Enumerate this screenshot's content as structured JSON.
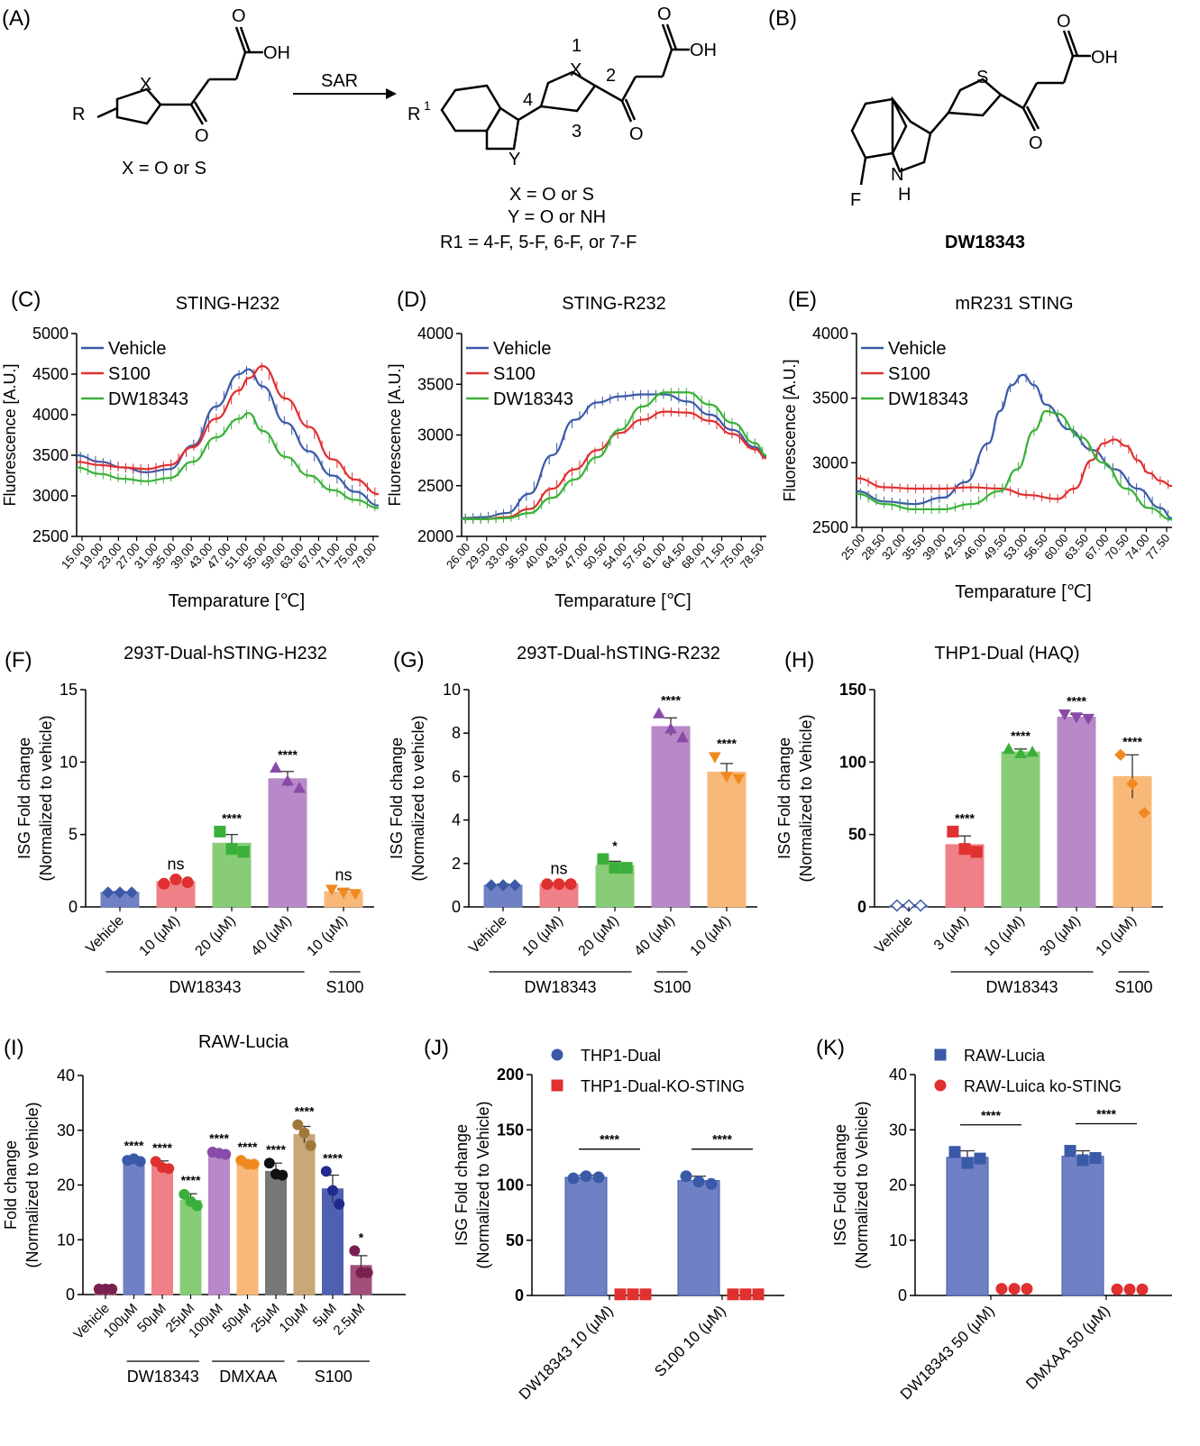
{
  "panels": {
    "A": {
      "label": "(A)",
      "left_structure_note": "X = O or S",
      "arrow_label": "SAR",
      "right_numbers": [
        "1",
        "2",
        "3",
        "4"
      ],
      "right_notes": [
        "X = O or S",
        "Y = O or NH",
        "R1 = 4-F, 5-F, 6-F, or 7-F"
      ]
    },
    "B": {
      "label": "(B)",
      "compound": "DW18343"
    }
  },
  "colors": {
    "blue": "#3a5aa8",
    "red": "#e03030",
    "green": "#3ab03a",
    "bar_blue": "#7080c4",
    "bar_red": "#f08088",
    "bar_green": "#88cc78",
    "bar_purple": "#b888c8",
    "bar_orange": "#f8b878",
    "bar_gray": "#777777",
    "bar_tan": "#c8a878",
    "bar_navy": "#5060b0",
    "bar_maroon": "#a05078"
  },
  "chart_data": [
    {
      "panel": "(C)",
      "type": "line",
      "title": "STING-H232",
      "xlabel": "Temparature [℃]",
      "ylabel": "Fluorescence [A.U.]",
      "ylim": [
        2500,
        5000
      ],
      "yticks": [
        2500,
        3000,
        3500,
        4000,
        4500,
        5000
      ],
      "xlim": [
        15,
        80
      ],
      "xticks": [
        "15.00",
        "19.00",
        "23.00",
        "27.00",
        "31.00",
        "35.00",
        "39.00",
        "43.00",
        "47.00",
        "51.00",
        "55.00",
        "59.00",
        "63.00",
        "67.00",
        "71.00",
        "75.00",
        "79.00"
      ],
      "legend": "top-left",
      "series": [
        {
          "name": "Vehicle",
          "color": "blue",
          "x": [
            15,
            20,
            25,
            30,
            35,
            40,
            45,
            50,
            52,
            55,
            60,
            65,
            70,
            75,
            80
          ],
          "y": [
            3500,
            3420,
            3350,
            3290,
            3330,
            3620,
            4100,
            4500,
            4560,
            4350,
            3900,
            3550,
            3250,
            3050,
            2880
          ]
        },
        {
          "name": "S100",
          "color": "red",
          "x": [
            15,
            20,
            25,
            30,
            35,
            40,
            45,
            50,
            52,
            55,
            60,
            65,
            70,
            75,
            80
          ],
          "y": [
            3420,
            3380,
            3350,
            3330,
            3380,
            3600,
            3950,
            4300,
            4450,
            4600,
            4200,
            3850,
            3450,
            3200,
            3020
          ]
        },
        {
          "name": "DW18343",
          "color": "green",
          "x": [
            15,
            20,
            25,
            30,
            35,
            40,
            45,
            50,
            52,
            55,
            60,
            65,
            70,
            75,
            80
          ],
          "y": [
            3350,
            3270,
            3210,
            3180,
            3220,
            3420,
            3720,
            3950,
            4020,
            3800,
            3480,
            3250,
            3070,
            2950,
            2850
          ]
        }
      ]
    },
    {
      "panel": "(D)",
      "type": "line",
      "title": "STING-R232",
      "xlabel": "Temparature [℃]",
      "ylabel": "Fluorescence [A.U.]",
      "ylim": [
        2000,
        4000
      ],
      "yticks": [
        2000,
        2500,
        3000,
        3500,
        4000
      ],
      "xlim": [
        26,
        80
      ],
      "xticks": [
        "26.00",
        "29.50",
        "33.00",
        "36.50",
        "40.00",
        "43.50",
        "47.00",
        "50.50",
        "54.00",
        "57.50",
        "61.00",
        "64.50",
        "68.00",
        "71.50",
        "75.00",
        "78.50"
      ],
      "legend": "top-left",
      "series": [
        {
          "name": "Vehicle",
          "color": "blue",
          "x": [
            26,
            30,
            34,
            38,
            42,
            46,
            50,
            54,
            58,
            62,
            66,
            70,
            74,
            78,
            80
          ],
          "y": [
            2180,
            2190,
            2230,
            2420,
            2800,
            3150,
            3320,
            3380,
            3400,
            3400,
            3330,
            3200,
            3050,
            2880,
            2780
          ]
        },
        {
          "name": "S100",
          "color": "red",
          "x": [
            26,
            30,
            34,
            38,
            42,
            46,
            50,
            54,
            58,
            62,
            66,
            70,
            74,
            78,
            80
          ],
          "y": [
            2170,
            2170,
            2190,
            2270,
            2470,
            2660,
            2850,
            3020,
            3150,
            3230,
            3220,
            3140,
            3010,
            2860,
            2770
          ]
        },
        {
          "name": "DW18343",
          "color": "green",
          "x": [
            26,
            30,
            34,
            38,
            42,
            46,
            50,
            54,
            58,
            62,
            66,
            70,
            74,
            78,
            80
          ],
          "y": [
            2170,
            2170,
            2180,
            2230,
            2380,
            2560,
            2780,
            3050,
            3280,
            3420,
            3420,
            3300,
            3120,
            2920,
            2800
          ]
        }
      ]
    },
    {
      "panel": "(E)",
      "type": "line",
      "title": "mR231 STING",
      "xlabel": "Temparature [℃]",
      "ylabel": "Fluorescence [A.U.]",
      "ylim": [
        2500,
        4000
      ],
      "yticks": [
        2500,
        3000,
        3500,
        4000
      ],
      "xlim": [
        25,
        80
      ],
      "xticks": [
        "25.00",
        "28.50",
        "32.00",
        "35.50",
        "39.00",
        "42.50",
        "46.00",
        "49.50",
        "53.00",
        "56.50",
        "60.00",
        "63.50",
        "67.00",
        "70.50",
        "74.00",
        "77.50"
      ],
      "legend": "top-left",
      "series": [
        {
          "name": "Vehicle",
          "color": "blue",
          "x": [
            25,
            30,
            35,
            40,
            44,
            48,
            50,
            52,
            54,
            56,
            58,
            62,
            66,
            70,
            74,
            78,
            80
          ],
          "y": [
            2780,
            2700,
            2680,
            2730,
            2850,
            3150,
            3400,
            3600,
            3680,
            3600,
            3450,
            3260,
            3100,
            2950,
            2800,
            2650,
            2570
          ]
        },
        {
          "name": "S100",
          "color": "red",
          "x": [
            25,
            30,
            35,
            40,
            45,
            50,
            55,
            60,
            63,
            66,
            68,
            70,
            72,
            74,
            76,
            78,
            80
          ],
          "y": [
            2880,
            2810,
            2800,
            2800,
            2810,
            2800,
            2750,
            2720,
            2800,
            3020,
            3150,
            3180,
            3130,
            3020,
            2920,
            2860,
            2820
          ]
        },
        {
          "name": "DW18343",
          "color": "green",
          "x": [
            25,
            30,
            35,
            40,
            45,
            50,
            53,
            56,
            58,
            60,
            64,
            68,
            72,
            76,
            80
          ],
          "y": [
            2760,
            2680,
            2640,
            2640,
            2680,
            2780,
            2950,
            3250,
            3400,
            3380,
            3200,
            3000,
            2800,
            2650,
            2560
          ]
        }
      ]
    },
    {
      "panel": "(F)",
      "type": "bar",
      "title": "293T-Dual-hSTING-H232",
      "ylabel": "ISG Fold change (Normalized to vehicle)",
      "ylim": [
        0,
        15
      ],
      "yticks": [
        0,
        5,
        10,
        15
      ],
      "categories": [
        "Vehicle",
        "10 (μM)",
        "20 (μM)",
        "40 (μM)",
        "10 (μM)"
      ],
      "values": [
        1.0,
        1.75,
        4.4,
        8.85,
        1.05
      ],
      "errors": [
        0.05,
        0.2,
        0.6,
        0.5,
        0.15
      ],
      "points": [
        [
          1,
          1,
          1
        ],
        [
          1.6,
          1.9,
          1.7
        ],
        [
          5.2,
          4.0,
          3.8
        ],
        [
          9.6,
          8.7,
          8.2
        ],
        [
          1.2,
          1.0,
          0.9
        ]
      ],
      "bar_colors": [
        "bar_blue",
        "bar_red",
        "bar_green",
        "bar_purple",
        "bar_orange"
      ],
      "markers": [
        "diamond",
        "circle",
        "square",
        "triangle",
        "triangle-down"
      ],
      "stars": [
        "",
        "ns",
        "****",
        "****",
        "ns"
      ],
      "groups": [
        {
          "label": "DW18343",
          "from": 0,
          "to": 3
        },
        {
          "label": "S100",
          "from": 4,
          "to": 4
        }
      ]
    },
    {
      "panel": "(G)",
      "type": "bar",
      "title": "293T-Dual-hSTING-R232",
      "ylabel": "ISG Fold change (Normalized to vehicle)",
      "ylim": [
        0,
        10
      ],
      "yticks": [
        0,
        2,
        4,
        6,
        8,
        10
      ],
      "categories": [
        "Vehicle",
        "10 (μM)",
        "20 (μM)",
        "40 (μM)",
        "10 (μM)"
      ],
      "values": [
        1.0,
        1.05,
        1.9,
        8.3,
        6.2
      ],
      "errors": [
        0.05,
        0.05,
        0.2,
        0.4,
        0.4
      ],
      "points": [
        [
          1,
          1,
          1
        ],
        [
          1.05,
          1.05,
          1.05
        ],
        [
          2.2,
          1.8,
          1.8
        ],
        [
          8.9,
          8.2,
          7.8
        ],
        [
          6.9,
          6.0,
          5.9
        ]
      ],
      "bar_colors": [
        "bar_blue",
        "bar_red",
        "bar_green",
        "bar_purple",
        "bar_orange"
      ],
      "markers": [
        "diamond",
        "circle",
        "square",
        "triangle",
        "triangle-down"
      ],
      "stars": [
        "",
        "ns",
        "*",
        "****",
        "****"
      ],
      "groups": [
        {
          "label": "DW18343",
          "from": 0,
          "to": 2
        },
        {
          "label": "S100",
          "from": 3,
          "to": 3
        }
      ]
    },
    {
      "panel": "(H)",
      "type": "bar",
      "title": "THP1-Dual  (HAQ)",
      "ylabel": "ISG Fold change (Normalized to Vehicle)",
      "ylim": [
        0,
        150
      ],
      "yticks": [
        0,
        50,
        100,
        150
      ],
      "categories": [
        "Vehicle",
        "3 (μM)",
        "10 (μM)",
        "30 (μM)",
        "10 (μM)"
      ],
      "values": [
        1.0,
        43,
        107,
        131,
        90
      ],
      "errors": [
        0.5,
        6,
        2,
        2,
        15
      ],
      "points": [
        [
          1,
          1,
          1
        ],
        [
          52,
          40,
          38
        ],
        [
          109,
          106,
          107
        ],
        [
          133,
          131,
          130
        ],
        [
          105,
          85,
          65
        ]
      ],
      "bar_colors": [
        "bar_blue",
        "bar_red",
        "bar_green",
        "bar_purple",
        "bar_orange"
      ],
      "markers": [
        "diamond-open",
        "square",
        "triangle",
        "triangle-down",
        "diamond"
      ],
      "stars": [
        "",
        "****",
        "****",
        "****",
        "****"
      ],
      "groups": [
        {
          "label": "DW18343",
          "from": 1,
          "to": 3
        },
        {
          "label": "S100",
          "from": 4,
          "to": 4
        }
      ]
    },
    {
      "panel": "(I)",
      "type": "bar",
      "title": "RAW-Lucia",
      "ylabel": "Fold change (Normalized to vehicle)",
      "ylim": [
        0,
        40
      ],
      "yticks": [
        0,
        10,
        20,
        30,
        40
      ],
      "categories": [
        "Vehicle",
        "100μM",
        "50μM",
        "25μM",
        "100μM",
        "50μM",
        "25μM",
        "10μM",
        "5μM",
        "2.5μM"
      ],
      "values": [
        1.0,
        24.5,
        23.5,
        17.2,
        25.8,
        24.0,
        22.5,
        29.2,
        19.3,
        5.3
      ],
      "errors": [
        0.1,
        0.3,
        0.9,
        1.2,
        0.3,
        0.5,
        1.5,
        1.5,
        2.5,
        1.8
      ],
      "points": [
        [
          1,
          1,
          1
        ],
        [
          24.5,
          24.8,
          24.3
        ],
        [
          24.3,
          23.2,
          23
        ],
        [
          18.3,
          17,
          16.2
        ],
        [
          26,
          25.8,
          25.6
        ],
        [
          24.5,
          23.8,
          23.8
        ],
        [
          24,
          22,
          21.8
        ],
        [
          31,
          29.5,
          27.2
        ],
        [
          22.5,
          19,
          16.5
        ],
        [
          8,
          4,
          4
        ]
      ],
      "bar_colors": [
        "bar_maroon",
        "bar_blue",
        "bar_red",
        "bar_green",
        "bar_purple",
        "bar_orange",
        "bar_gray",
        "bar_tan",
        "bar_navy",
        "bar_maroon"
      ],
      "markers": [
        "circle",
        "circle",
        "circle",
        "circle",
        "circle",
        "circle",
        "circle",
        "circle",
        "circle",
        "circle"
      ],
      "stars": [
        "",
        "****",
        "****",
        "****",
        "****",
        "****",
        "****",
        "****",
        "****",
        "*"
      ],
      "groups": [
        {
          "label": "DW18343",
          "from": 1,
          "to": 3
        },
        {
          "label": "DMXAA",
          "from": 4,
          "to": 6
        },
        {
          "label": "S100",
          "from": 7,
          "to": 9
        }
      ]
    },
    {
      "panel": "(J)",
      "type": "grouped-bar",
      "ylabel": "ISG Fold change (Normalized to Vehicle)",
      "ylim": [
        0,
        200
      ],
      "yticks": [
        0,
        50,
        100,
        150,
        200
      ],
      "categories": [
        "DW18343 10 (μM)",
        "S100 10 (μM)"
      ],
      "series": [
        {
          "name": "THP1-Dual",
          "color": "bar_blue",
          "marker": "circle",
          "marker_color": "blue",
          "values": [
            107,
            104
          ],
          "errors": [
            2,
            4
          ],
          "points": [
            [
              106,
              108,
              107
            ],
            [
              108,
              103,
              101
            ]
          ]
        },
        {
          "name": "THP1-Dual-KO-STING",
          "color": "red",
          "marker": "square",
          "marker_color": "red",
          "values": [
            1,
            1
          ],
          "errors": [
            0,
            0
          ],
          "points": [
            [
              1,
              1,
              1
            ],
            [
              1,
              1,
              1
            ]
          ]
        }
      ],
      "stars": [
        "****",
        "****"
      ],
      "legend": "top"
    },
    {
      "panel": "(K)",
      "type": "grouped-bar",
      "ylabel": "ISG Fold change (Normalized to Vehicle)",
      "ylim": [
        0,
        40
      ],
      "yticks": [
        0,
        10,
        20,
        30,
        40
      ],
      "categories": [
        "DW18343 50 (μM)",
        "DMXAA 50 (μM)"
      ],
      "series": [
        {
          "name": "RAW-Lucia",
          "color": "bar_blue",
          "marker": "square",
          "marker_color": "blue",
          "values": [
            25,
            25.2
          ],
          "errors": [
            1.2,
            1.0
          ],
          "points": [
            [
              26,
              24,
              24.8
            ],
            [
              26.2,
              24.5,
              24.9
            ]
          ]
        },
        {
          "name": "RAW-Luica ko-STING",
          "color": "red",
          "marker": "circle",
          "marker_color": "red",
          "values": [
            1.2,
            1.1
          ],
          "errors": [
            0,
            0
          ],
          "points": [
            [
              1.2,
              1.2,
              1.2
            ],
            [
              1.1,
              1.1,
              1.1
            ]
          ]
        }
      ],
      "stars": [
        "****",
        "****"
      ],
      "legend": "top"
    }
  ]
}
